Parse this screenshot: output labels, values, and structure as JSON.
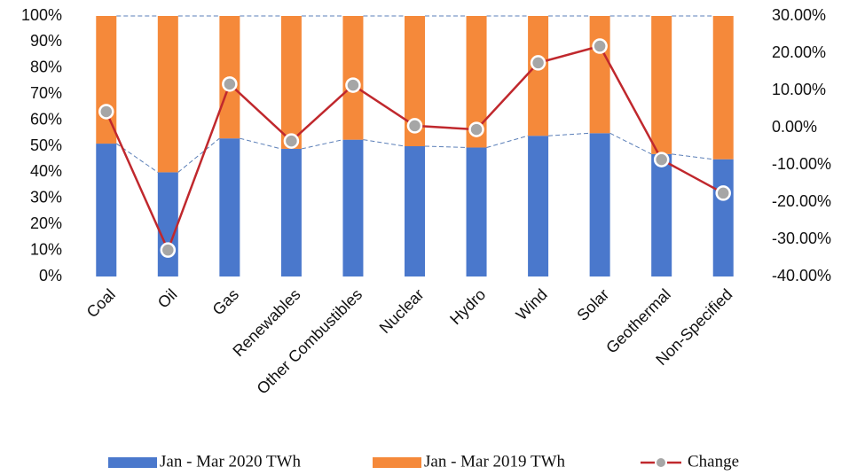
{
  "chart_data": {
    "type": "bar_line",
    "categories": [
      "Coal",
      "Oil",
      "Gas",
      "Renewables",
      "Other Combustibles",
      "Nuclear",
      "Hydro",
      "Wind",
      "Solar",
      "Geothermal",
      "Non-Specified"
    ],
    "series": [
      {
        "name": "Jan - Mar 2020 TWh",
        "color": "#4a78cc",
        "values": [
          51,
          40,
          53,
          49,
          52.5,
          50,
          49.5,
          54,
          55,
          47,
          45
        ]
      },
      {
        "name": "Jan - Mar 2019 TWh",
        "color": "#f5893a",
        "values": [
          49,
          60,
          47,
          51,
          47.5,
          50,
          50.5,
          46,
          45,
          53,
          55
        ]
      },
      {
        "name": "Change",
        "color": "#c0282d",
        "axis": "y2",
        "values": [
          4.3,
          -32.9,
          11.7,
          -3.6,
          11.4,
          0.5,
          -0.5,
          17.4,
          21.9,
          -8.6,
          -17.6
        ]
      }
    ],
    "ylim": [
      0,
      100
    ],
    "yticks": [
      {
        "value": 0,
        "label": "0%"
      },
      {
        "value": 10,
        "label": "10%"
      },
      {
        "value": 20,
        "label": "20%"
      },
      {
        "value": 30,
        "label": "30%"
      },
      {
        "value": 40,
        "label": "40%"
      },
      {
        "value": 50,
        "label": "50%"
      },
      {
        "value": 60,
        "label": "60%"
      },
      {
        "value": 70,
        "label": "70%"
      },
      {
        "value": 80,
        "label": "80%"
      },
      {
        "value": 90,
        "label": "90%"
      },
      {
        "value": 100,
        "label": "100%"
      }
    ],
    "y2lim": [
      -40,
      30
    ],
    "y2ticks": [
      {
        "value": -40,
        "label": "-40.00%"
      },
      {
        "value": -30,
        "label": "-30.00%"
      },
      {
        "value": -20,
        "label": "-20.00%"
      },
      {
        "value": -10,
        "label": "-10.00%"
      },
      {
        "value": 0,
        "label": "0.00%"
      },
      {
        "value": 10,
        "label": "10.00%"
      },
      {
        "value": 20,
        "label": "20.00%"
      },
      {
        "value": 30,
        "label": "30.00%"
      }
    ],
    "legend": "bottom"
  }
}
